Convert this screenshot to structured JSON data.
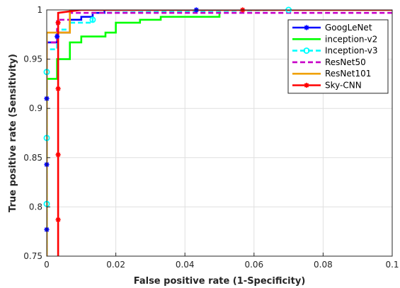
{
  "chart_data": {
    "type": "line",
    "title": "",
    "xlabel": "False positive rate (1-Specificity)",
    "ylabel": "True positive rate (Sensitivity)",
    "xlim": [
      0,
      0.1
    ],
    "ylim": [
      0.75,
      1
    ],
    "x_ticks": [
      0,
      0.02,
      0.04,
      0.06,
      0.08,
      0.1
    ],
    "y_ticks": [
      0.75,
      0.8,
      0.85,
      0.9,
      0.95,
      1
    ],
    "x_tick_labels": [
      "0",
      "0.02",
      "0.04",
      "0.06",
      "0.08",
      "0.1"
    ],
    "y_tick_labels": [
      "0.75",
      "0.8",
      "0.85",
      "0.9",
      "0.95",
      "1"
    ],
    "grid": true,
    "legend_position": "top-right",
    "series": [
      {
        "name": "GoogLeNet",
        "color": "#0000ff",
        "dash": "solid",
        "marker": "asterisk",
        "x": [
          0,
          0,
          0,
          0,
          0,
          0.003,
          0.003,
          0.003,
          0.0067,
          0.0067,
          0.01,
          0.01,
          0.0133,
          0.0133,
          0.0167,
          0.0167,
          0.0433,
          0.1
        ],
        "y": [
          0.75,
          0.777,
          0.843,
          0.91,
          0.967,
          0.967,
          0.973,
          0.977,
          0.977,
          0.99,
          0.99,
          0.993,
          0.993,
          0.997,
          0.997,
          1.0,
          1.0,
          1.0
        ],
        "marker_points": [
          [
            0,
            0.777
          ],
          [
            0,
            0.843
          ],
          [
            0,
            0.91
          ],
          [
            0.003,
            0.973
          ],
          [
            0.0433,
            1.0
          ]
        ]
      },
      {
        "name": "inception-v2",
        "color": "#00ff00",
        "dash": "solid",
        "marker": "none",
        "x": [
          0,
          0,
          0.003,
          0.003,
          0.0067,
          0.0067,
          0.01,
          0.01,
          0.017,
          0.017,
          0.02,
          0.02,
          0.027,
          0.027,
          0.033,
          0.033,
          0.05,
          0.05,
          0.1
        ],
        "y": [
          0.75,
          0.93,
          0.93,
          0.95,
          0.95,
          0.967,
          0.967,
          0.973,
          0.973,
          0.977,
          0.977,
          0.987,
          0.987,
          0.99,
          0.99,
          0.993,
          0.993,
          1.0,
          1.0
        ],
        "marker_points": []
      },
      {
        "name": "Inception-v3",
        "color": "#00ffff",
        "dash": "dashed",
        "marker": "circle",
        "x": [
          0,
          0,
          0,
          0,
          0,
          0.003,
          0.003,
          0.0067,
          0.0067,
          0.0133,
          0.0133,
          0.07,
          0.1
        ],
        "y": [
          0.75,
          0.803,
          0.87,
          0.937,
          0.96,
          0.96,
          0.98,
          0.98,
          0.987,
          0.987,
          0.997,
          1.0,
          1.0
        ],
        "marker_points": [
          [
            0,
            0.803
          ],
          [
            0,
            0.87
          ],
          [
            0,
            0.937
          ],
          [
            0.0133,
            0.99
          ],
          [
            0.07,
            1.0
          ]
        ]
      },
      {
        "name": "ResNet50",
        "color": "#c800c8",
        "dash": "dashed",
        "marker": "none",
        "x": [
          0,
          0,
          0.003,
          0.003,
          0.0067,
          0.0067,
          0.1
        ],
        "y": [
          0.75,
          0.967,
          0.967,
          0.99,
          0.99,
          0.997,
          0.997
        ],
        "marker_points": []
      },
      {
        "name": "ResNet101",
        "color": "#f0a000",
        "dash": "solid",
        "marker": "none",
        "x": [
          0,
          0,
          0.0067,
          0.0067,
          0.1
        ],
        "y": [
          0.75,
          0.977,
          0.977,
          1.0,
          1.0
        ],
        "marker_points": []
      },
      {
        "name": "Sky-CNN",
        "color": "#ff0000",
        "dash": "solid",
        "marker": "asterisk",
        "x": [
          0.0033,
          0.0033,
          0.0033,
          0.0033,
          0.0033,
          0.0033,
          0.01,
          0.1
        ],
        "y": [
          0.75,
          0.787,
          0.853,
          0.92,
          0.987,
          0.997,
          1.0,
          1.0
        ],
        "marker_points": [
          [
            0.0033,
            0.787
          ],
          [
            0.0033,
            0.853
          ],
          [
            0.0033,
            0.92
          ],
          [
            0.0033,
            0.987
          ],
          [
            0.0567,
            1.0
          ]
        ]
      }
    ]
  }
}
